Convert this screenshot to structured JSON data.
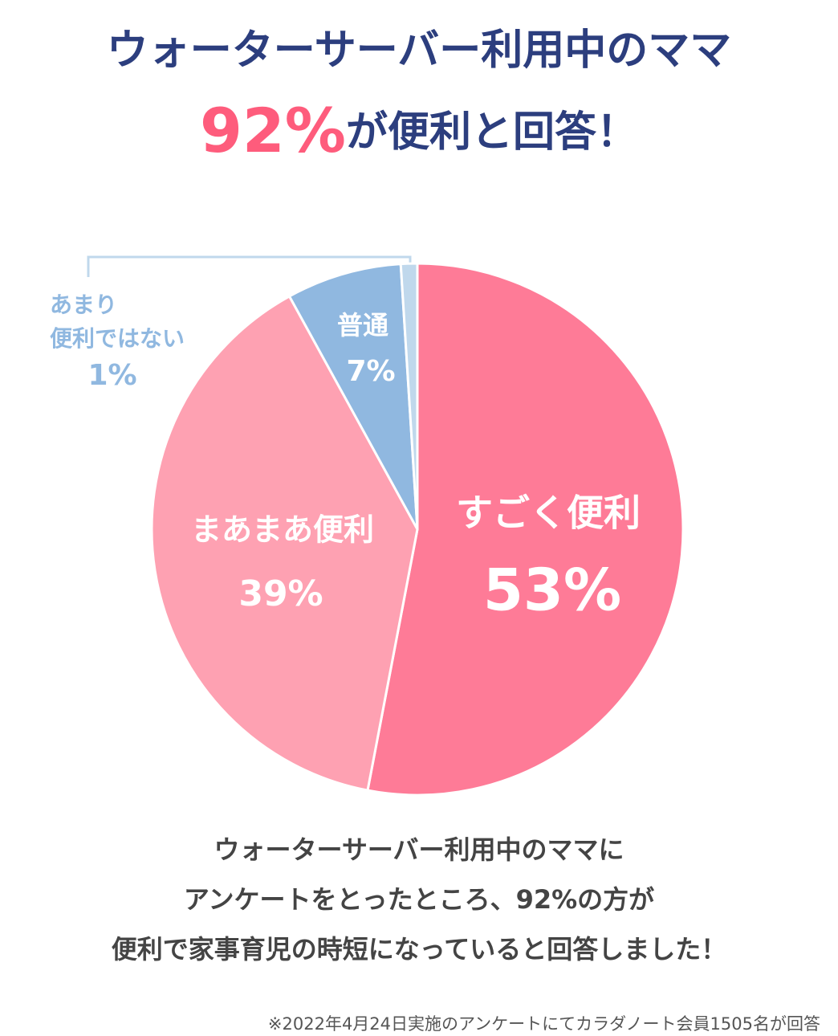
{
  "chart_data": {
    "type": "pie",
    "title": "ウォーターサーバー利用中のママ",
    "title_highlight": "92%",
    "title_rest": "が便利と回答！",
    "categories": [
      "すごく便利",
      "まあまあ便利",
      "普通",
      "あまり\n便利ではない"
    ],
    "values": [
      53,
      39,
      7,
      1
    ],
    "value_labels": [
      "53%",
      "39%",
      "7%",
      "1%"
    ],
    "colors": [
      "#fe7b97",
      "#fea1b2",
      "#90b8e0",
      "#c0d8ec"
    ]
  },
  "body": [
    "ウォーターサーバー利用中のママに",
    "アンケートをとったところ、92%の方が",
    "便利で家事育児の時短になっていると回答しました！"
  ],
  "note": "※2022年4月24日実施のアンケートにてカラダノート会員1505名が回答"
}
